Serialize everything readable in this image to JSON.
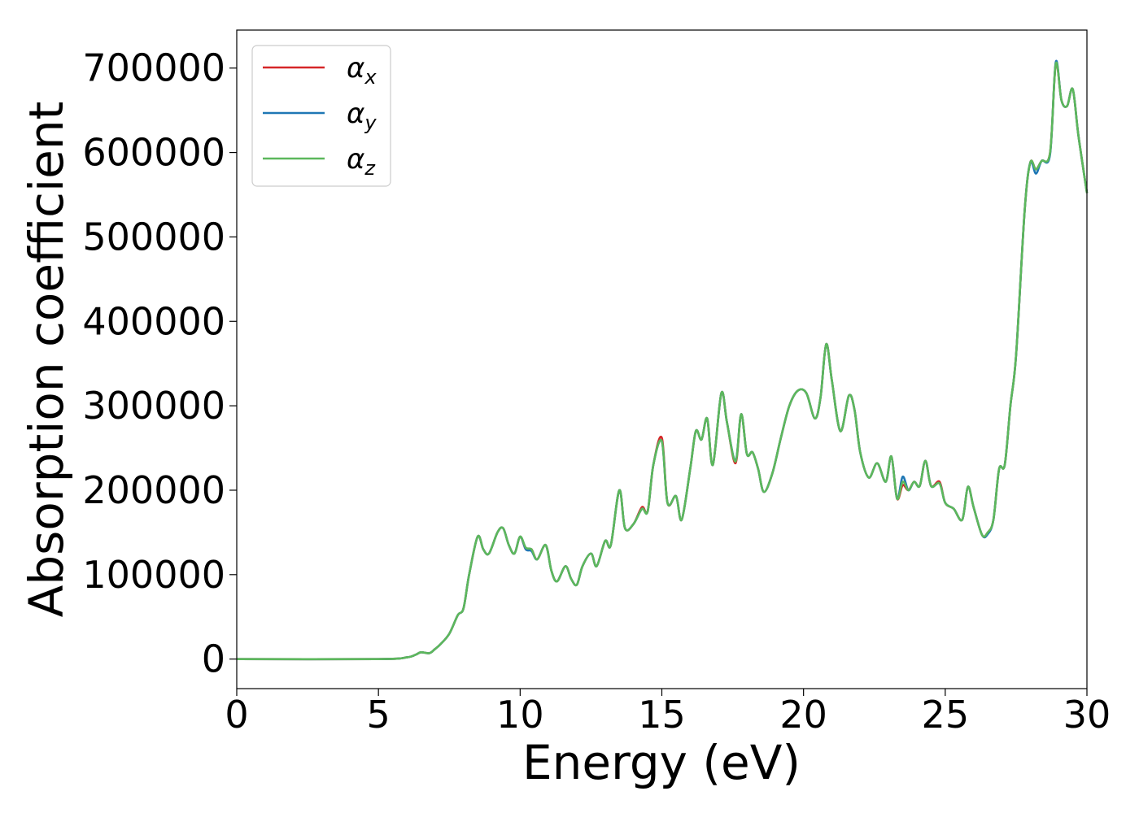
{
  "chart_data": {
    "type": "line",
    "xlabel": "Energy (eV)",
    "ylabel": "Absorption coefficient",
    "xlim": [
      0,
      30
    ],
    "ylim": [
      -35000,
      745000
    ],
    "xticks": [
      0,
      5,
      10,
      15,
      20,
      25,
      30
    ],
    "yticks": [
      0,
      100000,
      200000,
      300000,
      400000,
      500000,
      600000,
      700000
    ],
    "grid": false,
    "legend_position": "top-left",
    "x": [
      0,
      5,
      6.0,
      6.3,
      6.5,
      6.8,
      7.0,
      7.2,
      7.5,
      7.8,
      8.0,
      8.2,
      8.5,
      8.7,
      8.9,
      9.2,
      9.4,
      9.6,
      9.8,
      10.0,
      10.2,
      10.4,
      10.6,
      10.9,
      11.1,
      11.3,
      11.6,
      11.8,
      12.0,
      12.2,
      12.5,
      12.7,
      13.0,
      13.2,
      13.5,
      13.7,
      14.0,
      14.3,
      14.5,
      14.7,
      15.0,
      15.2,
      15.5,
      15.7,
      16.0,
      16.2,
      16.4,
      16.6,
      16.8,
      17.1,
      17.3,
      17.6,
      17.8,
      18.0,
      18.2,
      18.4,
      18.6,
      18.9,
      19.2,
      19.5,
      19.8,
      20.1,
      20.4,
      20.6,
      20.8,
      21.0,
      21.3,
      21.6,
      21.8,
      22.0,
      22.3,
      22.6,
      22.9,
      23.1,
      23.3,
      23.5,
      23.7,
      23.9,
      24.1,
      24.3,
      24.5,
      24.8,
      25.0,
      25.3,
      25.6,
      25.8,
      26.0,
      26.3,
      26.5,
      26.7,
      26.9,
      27.1,
      27.3,
      27.5,
      27.8,
      28.0,
      28.2,
      28.4,
      28.7,
      28.9,
      29.1,
      29.3,
      29.5,
      29.7,
      30.0
    ],
    "series": [
      {
        "name": "α_x",
        "color": "#d62728",
        "values": [
          0,
          0,
          2000,
          5000,
          8000,
          7000,
          12000,
          18000,
          30000,
          52000,
          60000,
          100000,
          145000,
          130000,
          125000,
          150000,
          155000,
          135000,
          125000,
          145000,
          130000,
          130000,
          118000,
          135000,
          105000,
          92000,
          110000,
          95000,
          88000,
          110000,
          125000,
          110000,
          140000,
          135000,
          200000,
          155000,
          160000,
          180000,
          175000,
          230000,
          262000,
          185000,
          193000,
          165000,
          225000,
          270000,
          260000,
          285000,
          230000,
          315000,
          280000,
          232000,
          290000,
          243000,
          245000,
          225000,
          198000,
          220000,
          262000,
          300000,
          318000,
          315000,
          285000,
          310000,
          373000,
          330000,
          270000,
          312000,
          295000,
          245000,
          215000,
          232000,
          210000,
          240000,
          190000,
          206000,
          200000,
          210000,
          205000,
          235000,
          205000,
          210000,
          185000,
          178000,
          165000,
          204000,
          180000,
          147000,
          150000,
          165000,
          225000,
          230000,
          300000,
          360000,
          530000,
          588000,
          580000,
          590000,
          600000,
          705000,
          662000,
          655000,
          675000,
          620000,
          552000
        ]
      },
      {
        "name": "α_y",
        "color": "#1f77b4",
        "values": [
          0,
          0,
          2000,
          5000,
          8000,
          7000,
          12000,
          18000,
          30000,
          52000,
          60000,
          100000,
          145000,
          130000,
          125000,
          150000,
          155000,
          135000,
          125000,
          145000,
          130000,
          128000,
          118000,
          135000,
          105000,
          92000,
          110000,
          95000,
          88000,
          110000,
          125000,
          110000,
          140000,
          135000,
          200000,
          155000,
          160000,
          178000,
          175000,
          230000,
          258000,
          185000,
          193000,
          165000,
          225000,
          270000,
          260000,
          285000,
          230000,
          315000,
          280000,
          235000,
          290000,
          243000,
          245000,
          225000,
          198000,
          220000,
          262000,
          300000,
          318000,
          315000,
          285000,
          310000,
          373000,
          330000,
          270000,
          312000,
          295000,
          245000,
          215000,
          232000,
          210000,
          240000,
          190000,
          216000,
          200000,
          210000,
          205000,
          235000,
          205000,
          208000,
          185000,
          178000,
          165000,
          204000,
          180000,
          147000,
          148000,
          165000,
          225000,
          230000,
          300000,
          360000,
          530000,
          588000,
          575000,
          590000,
          598000,
          707000,
          662000,
          655000,
          675000,
          620000,
          552000
        ]
      },
      {
        "name": "α_z",
        "color": "#5cb85c",
        "values": [
          0,
          0,
          2000,
          5000,
          8000,
          7000,
          12000,
          18000,
          30000,
          52000,
          60000,
          100000,
          145000,
          130000,
          125000,
          150000,
          155000,
          135000,
          125000,
          145000,
          132000,
          130000,
          118000,
          135000,
          105000,
          92000,
          110000,
          95000,
          88000,
          110000,
          125000,
          110000,
          140000,
          135000,
          200000,
          155000,
          160000,
          178000,
          175000,
          230000,
          258000,
          185000,
          193000,
          165000,
          225000,
          270000,
          260000,
          285000,
          230000,
          315000,
          280000,
          234000,
          290000,
          243000,
          245000,
          225000,
          198000,
          220000,
          262000,
          300000,
          318000,
          315000,
          285000,
          310000,
          373000,
          330000,
          270000,
          312000,
          295000,
          245000,
          215000,
          232000,
          210000,
          240000,
          190000,
          210000,
          200000,
          210000,
          205000,
          235000,
          205000,
          208000,
          185000,
          178000,
          165000,
          204000,
          180000,
          147000,
          150000,
          165000,
          225000,
          230000,
          300000,
          360000,
          530000,
          588000,
          580000,
          590000,
          600000,
          705000,
          662000,
          655000,
          675000,
          620000,
          552000
        ]
      }
    ]
  },
  "legend": {
    "entries": [
      {
        "base": "α",
        "sub": "x"
      },
      {
        "base": "α",
        "sub": "y"
      },
      {
        "base": "α",
        "sub": "z"
      }
    ]
  }
}
